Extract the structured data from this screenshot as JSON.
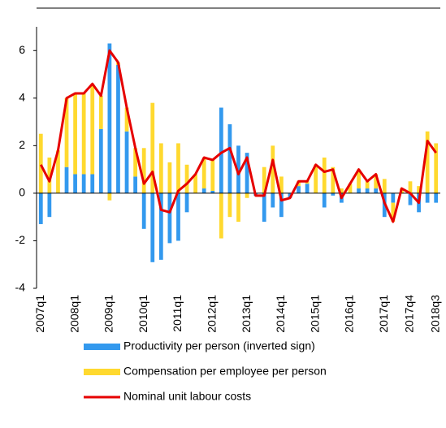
{
  "chart_data": {
    "type": "bar",
    "categories": [
      "2007q1",
      null,
      null,
      null,
      "2008q1",
      null,
      null,
      null,
      "2009q1",
      null,
      null,
      null,
      "2010q1",
      null,
      null,
      null,
      "2011q1",
      null,
      null,
      null,
      "2012q1",
      null,
      null,
      null,
      "2013q1",
      null,
      null,
      null,
      "2014q1",
      null,
      null,
      null,
      "2015q1",
      null,
      null,
      null,
      "2016q1",
      null,
      null,
      null,
      "2017q1",
      null,
      null,
      "2017q4",
      null,
      null,
      "2018q3"
    ],
    "series": [
      {
        "name": "Productivity per person (inverted sign)",
        "color": "#3399ee",
        "type": "bar",
        "values": [
          -1.3,
          -1.0,
          0.0,
          1.1,
          0.8,
          0.8,
          0.8,
          2.7,
          6.3,
          5.4,
          2.6,
          0.7,
          -1.5,
          -2.9,
          -2.8,
          -2.1,
          -2.0,
          -0.8,
          0.0,
          0.2,
          0.1,
          3.6,
          2.9,
          2.0,
          1.7,
          -0.1,
          -1.2,
          -0.6,
          -1.0,
          -0.2,
          0.3,
          0.4,
          0.0,
          -0.6,
          -0.1,
          -0.4,
          0.0,
          0.2,
          0.2,
          0.2,
          -1.0,
          -0.4,
          0.0,
          -0.5,
          -0.8,
          -0.4,
          -0.4
        ]
      },
      {
        "name": "Compensation per employee per person",
        "color": "#ffd92f",
        "type": "bar",
        "values": [
          2.5,
          1.5,
          1.8,
          2.9,
          3.4,
          3.4,
          3.8,
          1.4,
          -0.3,
          0.1,
          1.0,
          1.2,
          1.9,
          3.8,
          2.1,
          1.3,
          2.1,
          1.2,
          0.8,
          1.3,
          1.3,
          -1.9,
          -1.0,
          -1.2,
          -0.2,
          0.0,
          1.1,
          2.0,
          0.7,
          0.0,
          0.2,
          0.1,
          1.2,
          1.5,
          1.1,
          0.2,
          0.4,
          0.8,
          0.3,
          0.6,
          0.6,
          -0.8,
          0.2,
          0.5,
          0.3,
          2.6,
          2.1
        ]
      },
      {
        "name": "Nominal unit labour costs",
        "color": "#e60000",
        "type": "line",
        "values": [
          1.2,
          0.5,
          1.8,
          4.0,
          4.2,
          4.2,
          4.6,
          4.1,
          6.0,
          5.5,
          3.6,
          1.9,
          0.4,
          0.9,
          -0.7,
          -0.8,
          0.1,
          0.4,
          0.8,
          1.5,
          1.4,
          1.7,
          1.9,
          0.8,
          1.5,
          -0.1,
          -0.1,
          1.4,
          -0.3,
          -0.2,
          0.5,
          0.5,
          1.2,
          0.9,
          1.0,
          -0.2,
          0.4,
          1.0,
          0.5,
          0.8,
          -0.4,
          -1.2,
          0.2,
          0.0,
          -0.4,
          2.2,
          1.7
        ]
      }
    ],
    "ylim": [
      -4,
      7
    ],
    "yticks": [
      -4,
      -2,
      0,
      2,
      4,
      6
    ]
  }
}
